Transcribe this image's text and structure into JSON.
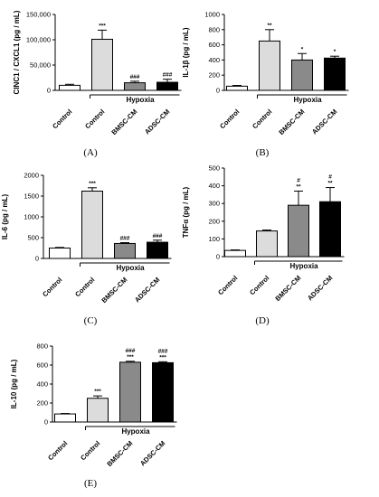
{
  "colors": {
    "Control": "#ffffff",
    "Hypoxia-Control": "#dcdcdc",
    "BMSC-CM": "#8a8a8a",
    "ADSC-CM": "#000000"
  },
  "chart_data": [
    {
      "type": "bar",
      "panel_label": "(A)",
      "ylabel": "CINC1 / CXCL1 (pg / mL)",
      "ylim": [
        0,
        150000
      ],
      "yticks": [
        0,
        50000,
        100000,
        150000
      ],
      "ytick_labels": [
        "0",
        "50,000",
        "100,000",
        "150,000"
      ],
      "categories": [
        "Control",
        "Control",
        "BMSC-CM",
        "ADSC-CM"
      ],
      "group_label": "Hypoxia",
      "group_span": [
        1,
        3
      ],
      "fill_keys": [
        "Control",
        "Hypoxia-Control",
        "BMSC-CM",
        "ADSC-CM"
      ],
      "values": [
        10000,
        101000,
        15000,
        16000
      ],
      "errors": [
        2000,
        18000,
        3000,
        6000
      ],
      "significance": [
        [],
        [
          "***"
        ],
        [
          "###"
        ],
        [
          "###"
        ]
      ]
    },
    {
      "type": "bar",
      "panel_label": "(B)",
      "ylabel": "IL-1β (pg / mL)",
      "ylim": [
        0,
        1000
      ],
      "yticks": [
        0,
        200,
        400,
        600,
        800,
        1000
      ],
      "ytick_labels": [
        "0",
        "200",
        "400",
        "600",
        "800",
        "1000"
      ],
      "categories": [
        "Control",
        "Control",
        "BMSC-CM",
        "ADSC-CM"
      ],
      "group_label": "Hypoxia",
      "group_span": [
        1,
        3
      ],
      "fill_keys": [
        "Control",
        "Hypoxia-Control",
        "BMSC-CM",
        "ADSC-CM"
      ],
      "values": [
        55,
        650,
        400,
        425
      ],
      "errors": [
        10,
        150,
        85,
        25
      ],
      "significance": [
        [],
        [
          "**"
        ],
        [
          "*"
        ],
        [
          "*"
        ]
      ]
    },
    {
      "type": "bar",
      "panel_label": "(C)",
      "ylabel": "IL-6 (pg / mL)",
      "ylim": [
        0,
        2000
      ],
      "yticks": [
        0,
        500,
        1000,
        1500,
        2000
      ],
      "ytick_labels": [
        "0",
        "500",
        "1000",
        "1500",
        "2000"
      ],
      "categories": [
        "Control",
        "Control",
        "BMSC-CM",
        "ADSC-CM"
      ],
      "group_label": "Hypoxia",
      "group_span": [
        1,
        3
      ],
      "fill_keys": [
        "Control",
        "Hypoxia-Control",
        "BMSC-CM",
        "ADSC-CM"
      ],
      "values": [
        250,
        1620,
        360,
        390
      ],
      "errors": [
        15,
        80,
        20,
        50
      ],
      "significance": [
        [],
        [
          "***"
        ],
        [
          "###"
        ],
        [
          "###"
        ]
      ]
    },
    {
      "type": "bar",
      "panel_label": "(D)",
      "ylabel": "TNFα (pg / mL)",
      "ylim": [
        0,
        500
      ],
      "yticks": [
        0,
        100,
        200,
        300,
        400,
        500
      ],
      "ytick_labels": [
        "0",
        "100",
        "200",
        "300",
        "400",
        "500"
      ],
      "categories": [
        "Control",
        "Control",
        "BMSC-CM",
        "ADSC-CM"
      ],
      "group_label": "Hypoxia",
      "group_span": [
        1,
        3
      ],
      "fill_keys": [
        "Control",
        "Hypoxia-Control",
        "BMSC-CM",
        "ADSC-CM"
      ],
      "values": [
        35,
        145,
        290,
        310
      ],
      "errors": [
        3,
        5,
        80,
        80
      ],
      "significance": [
        [],
        [],
        [
          "#",
          "**"
        ],
        [
          "#",
          "**"
        ]
      ]
    },
    {
      "type": "bar",
      "panel_label": "(E)",
      "ylabel": "IL-10 (pg / mL)",
      "ylim": [
        0,
        800
      ],
      "yticks": [
        0,
        200,
        400,
        600,
        800
      ],
      "ytick_labels": [
        "0",
        "200",
        "400",
        "600",
        "800"
      ],
      "categories": [
        "Control",
        "Control",
        "BMSC-CM",
        "ADSC-CM"
      ],
      "group_label": "Hypoxia",
      "group_span": [
        1,
        3
      ],
      "fill_keys": [
        "Control",
        "Hypoxia-Control",
        "BMSC-CM",
        "ADSC-CM"
      ],
      "values": [
        85,
        250,
        630,
        625
      ],
      "errors": [
        5,
        25,
        10,
        10
      ],
      "significance": [
        [],
        [
          "***"
        ],
        [
          "###",
          "***"
        ],
        [
          "###",
          "***"
        ]
      ]
    }
  ]
}
